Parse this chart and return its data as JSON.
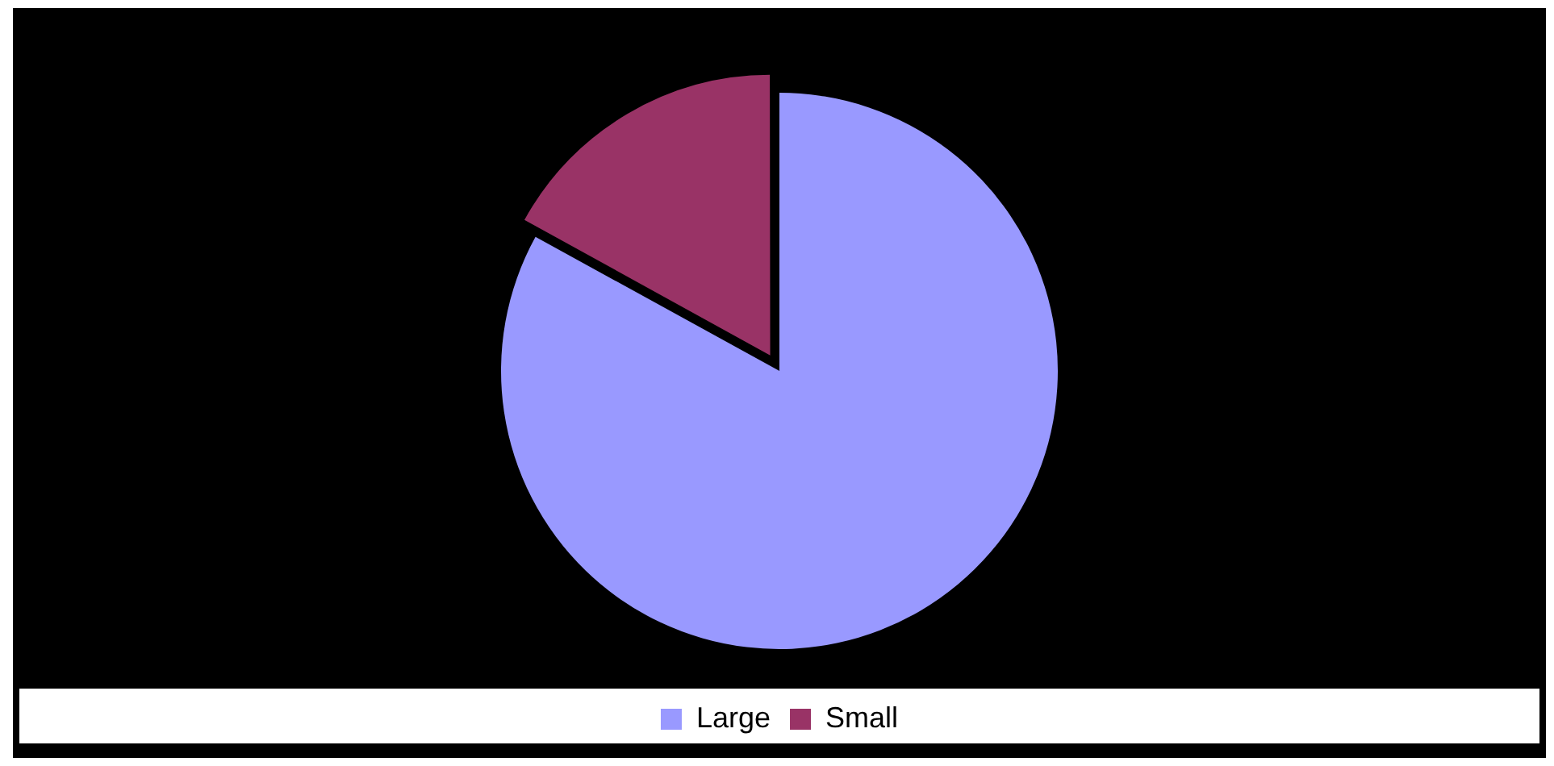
{
  "chart_data": {
    "type": "pie",
    "categories": [
      "Large",
      "Small"
    ],
    "values": [
      83,
      17
    ],
    "colors": [
      "#9999ff",
      "#993366"
    ],
    "legend": "bottom"
  }
}
